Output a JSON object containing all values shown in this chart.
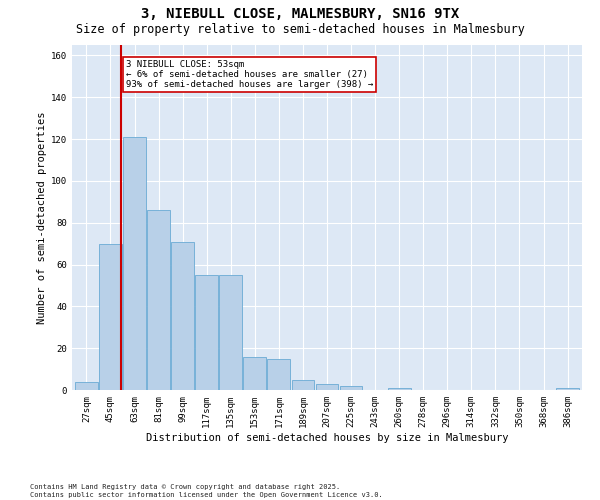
{
  "title": "3, NIEBULL CLOSE, MALMESBURY, SN16 9TX",
  "subtitle": "Size of property relative to semi-detached houses in Malmesbury",
  "xlabel": "Distribution of semi-detached houses by size in Malmesbury",
  "ylabel": "Number of semi-detached properties",
  "categories": [
    "27sqm",
    "45sqm",
    "63sqm",
    "81sqm",
    "99sqm",
    "117sqm",
    "135sqm",
    "153sqm",
    "171sqm",
    "189sqm",
    "207sqm",
    "225sqm",
    "243sqm",
    "260sqm",
    "278sqm",
    "296sqm",
    "314sqm",
    "332sqm",
    "350sqm",
    "368sqm",
    "386sqm"
  ],
  "values": [
    4,
    70,
    121,
    86,
    71,
    55,
    55,
    16,
    15,
    5,
    3,
    2,
    0,
    1,
    0,
    0,
    0,
    0,
    0,
    0,
    1
  ],
  "bar_color": "#b8d0e8",
  "bar_edge_color": "#6aaad4",
  "background_color": "#dde8f5",
  "grid_color": "#ffffff",
  "vline_x": 1.44,
  "vline_color": "#cc0000",
  "annotation_title": "3 NIEBULL CLOSE: 53sqm",
  "annotation_line1": "← 6% of semi-detached houses are smaller (27)",
  "annotation_line2": "93% of semi-detached houses are larger (398) →",
  "annotation_box_color": "#ffffff",
  "annotation_box_edge": "#cc0000",
  "footnote1": "Contains HM Land Registry data © Crown copyright and database right 2025.",
  "footnote2": "Contains public sector information licensed under the Open Government Licence v3.0.",
  "ylim": [
    0,
    165
  ],
  "title_fontsize": 10,
  "subtitle_fontsize": 8.5,
  "xlabel_fontsize": 7.5,
  "ylabel_fontsize": 7.5,
  "tick_fontsize": 6.5,
  "annot_fontsize": 6.5,
  "footnote_fontsize": 5.0
}
